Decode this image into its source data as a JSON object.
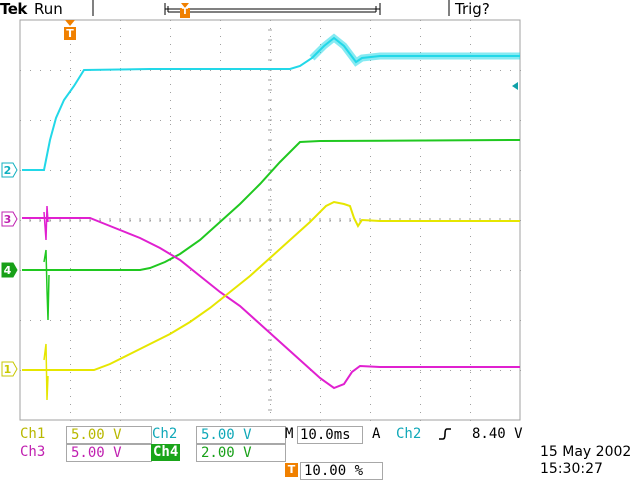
{
  "header": {
    "brand": "Tek",
    "status": "Run",
    "trigger_status": "Trig?"
  },
  "channel_markers": {
    "ch1": "1",
    "ch2": "2",
    "ch3": "3",
    "ch4": "4",
    "trigger": "T"
  },
  "readouts": {
    "ch1_label": "Ch1",
    "ch1_scale": "5.00 V",
    "ch2_label": "Ch2",
    "ch2_scale": "5.00 V",
    "ch3_label": "Ch3",
    "ch3_scale": "5.00 V",
    "ch4_label": "Ch4",
    "ch4_scale": "2.00 V",
    "timebase_label": "M",
    "timebase": "10.0ms",
    "trigger_mode": "A",
    "trigger_source": "Ch2",
    "trigger_slope_icon": "rising-edge-icon",
    "trigger_level": "8.40 V",
    "trigger_position": "10.00 %"
  },
  "datetime": {
    "date": "15 May 2002",
    "time": "15:30:27"
  },
  "colors": {
    "ch1": "#e6e600",
    "ch2": "#22d8e8",
    "ch3": "#e020d0",
    "ch4": "#20c820",
    "trigger_marker": "#f08000",
    "graticule": "#a0a0a0"
  }
}
